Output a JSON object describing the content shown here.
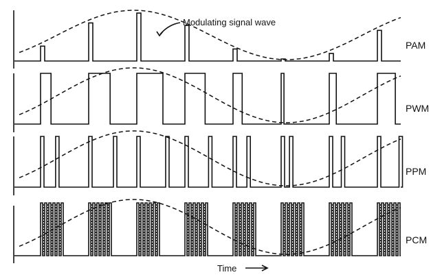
{
  "annotation": "Modulating signal wave",
  "x_axis_label": "Time",
  "rows": [
    {
      "id": "pam",
      "label": "PAM"
    },
    {
      "id": "pwm",
      "label": "PWM"
    },
    {
      "id": "ppm",
      "label": "PPM"
    },
    {
      "id": "pcm",
      "label": "PCM"
    }
  ],
  "sample_count": 8
}
